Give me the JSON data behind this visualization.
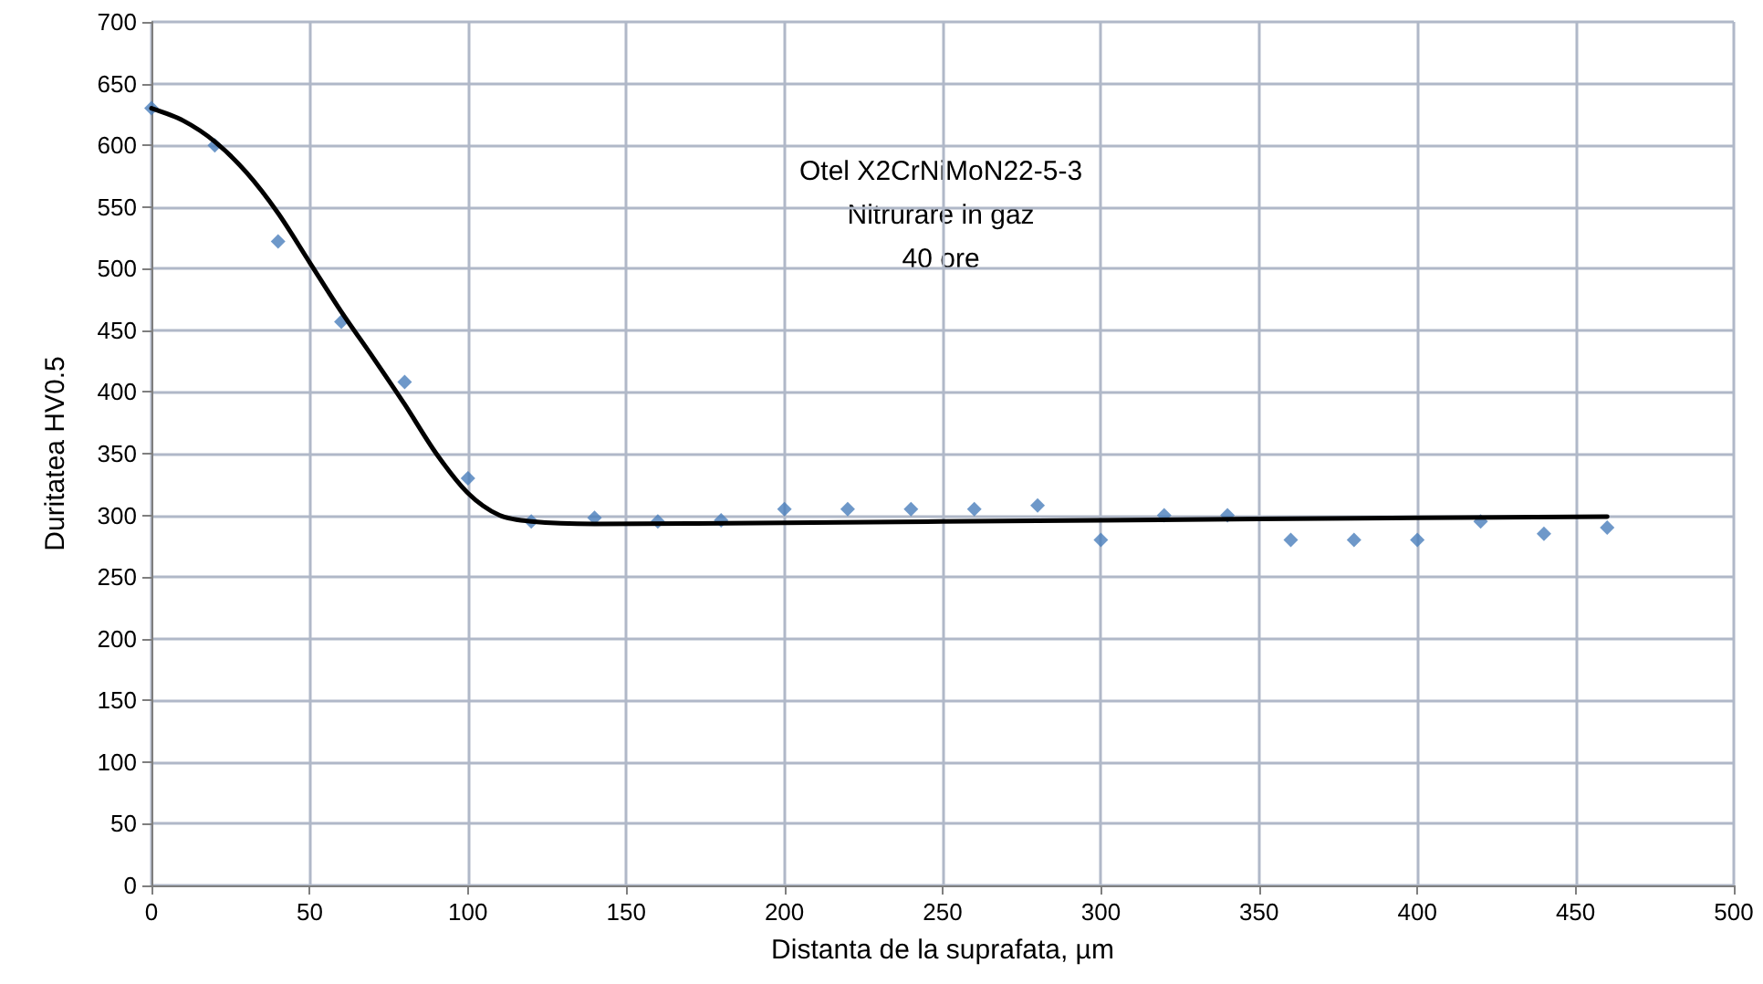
{
  "chart_data": {
    "type": "scatter",
    "xlabel": "Distanta de la suprafata, µm",
    "ylabel": "Duritatea HV0.5",
    "annotations": [
      "Otel X2CrNiMoN22-5-3\nNitrurare in gaz\n40 ore"
    ],
    "xlim": [
      0,
      500
    ],
    "xticks": [
      0,
      50,
      100,
      150,
      200,
      250,
      300,
      350,
      400,
      450,
      500
    ],
    "ylim": [
      0,
      700
    ],
    "yticks": [
      0,
      50,
      100,
      150,
      200,
      250,
      300,
      350,
      400,
      450,
      500,
      550,
      600,
      650,
      700
    ],
    "grid": true,
    "series": [
      {
        "color": "#4a7ebb",
        "marker": "diamond",
        "x": [
          0,
          20,
          40,
          60,
          80,
          100,
          120,
          140,
          160,
          180,
          200,
          220,
          240,
          260,
          280,
          300,
          320,
          340,
          360,
          380,
          400,
          420,
          440,
          460
        ],
        "values": [
          630,
          600,
          522,
          457,
          408,
          330,
          295,
          298,
          295,
          296,
          305,
          305,
          305,
          305,
          308,
          280,
          300,
          300,
          280,
          280,
          280,
          295,
          285,
          290
        ]
      },
      {
        "type": "line",
        "color": "#000000",
        "marker": "none",
        "line_style": "solid",
        "x": [
          0,
          10,
          20,
          30,
          40,
          50,
          60,
          70,
          80,
          90,
          100,
          110,
          120,
          140,
          200,
          300,
          400,
          460
        ],
        "values": [
          630,
          620,
          603,
          578,
          545,
          505,
          465,
          428,
          390,
          350,
          318,
          300,
          295,
          293,
          294,
          296,
          298,
          299
        ]
      }
    ]
  }
}
